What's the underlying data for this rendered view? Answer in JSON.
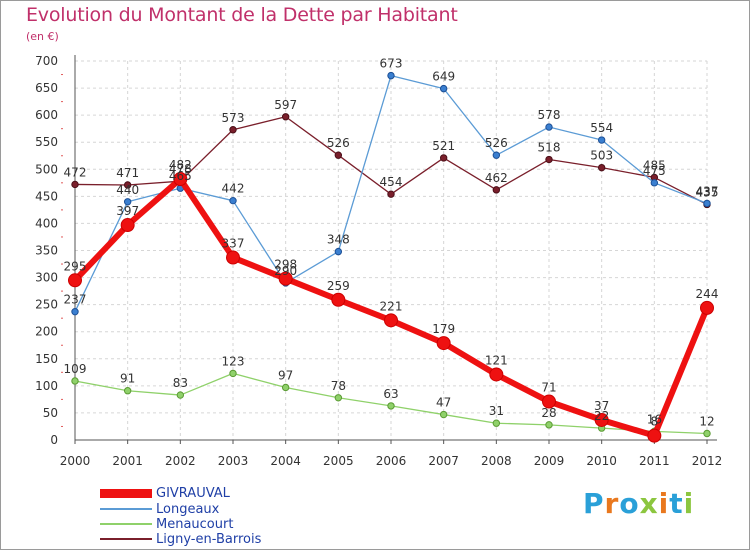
{
  "header": {
    "title": "Evolution du Montant de la Dette par Habitant",
    "subtitle": "(en €)"
  },
  "logo": {
    "letters": [
      "P",
      "r",
      "o",
      "x",
      "i",
      "t",
      "i"
    ],
    "colors": [
      "#2aa0d8",
      "#e9781e",
      "#2aa0d8",
      "#8cc63f",
      "#e9781e",
      "#2aa0d8",
      "#8cc63f"
    ]
  },
  "chart_data": {
    "type": "line",
    "title": "Evolution du Montant de la Dette par Habitant",
    "subtitle": "(en €)",
    "x": [
      "2000",
      "2001",
      "2002",
      "2003",
      "2004",
      "2005",
      "2006",
      "2007",
      "2008",
      "2009",
      "2010",
      "2011",
      "2012"
    ],
    "ylim": [
      0,
      700
    ],
    "yticks": [
      0,
      50,
      100,
      150,
      200,
      250,
      300,
      350,
      400,
      450,
      500,
      550,
      600,
      650,
      700
    ],
    "grid": true,
    "legend_position": "bottom-left",
    "series": [
      {
        "name": "GIVRAUVAL",
        "color": "#ee1111",
        "values": [
          295,
          397,
          482,
          337,
          298,
          259,
          221,
          179,
          121,
          71,
          37,
          8,
          244
        ]
      },
      {
        "name": "Longeaux",
        "color": "#5b9bd5",
        "values": [
          237,
          440,
          465,
          442,
          290,
          348,
          673,
          649,
          526,
          578,
          554,
          475,
          437
        ]
      },
      {
        "name": "Menaucourt",
        "color": "#8fd16a",
        "values": [
          109,
          91,
          83,
          123,
          97,
          78,
          63,
          47,
          31,
          28,
          22,
          16,
          12
        ]
      },
      {
        "name": "Ligny-en-Barrois",
        "color": "#7a1f2b",
        "values": [
          472,
          471,
          478,
          573,
          597,
          526,
          454,
          521,
          462,
          518,
          503,
          485,
          435
        ]
      }
    ],
    "data_labels": [
      [
        "295",
        "397",
        "482",
        "337",
        "298",
        "259",
        "221",
        "179",
        "121",
        "71",
        "37",
        "8",
        "244"
      ],
      [
        "237",
        "440",
        "465",
        "442",
        "290",
        "348",
        "673",
        "649",
        "526",
        "578",
        "554",
        "475",
        "437"
      ],
      [
        "109",
        "91",
        "83",
        "123",
        "97",
        "78",
        "63",
        "47",
        "31",
        "28",
        "22",
        "16",
        "12"
      ],
      [
        "472",
        "471",
        "478",
        "573",
        "597",
        "526",
        "454",
        "521",
        "462",
        "518",
        "503",
        "485",
        "435"
      ]
    ]
  }
}
